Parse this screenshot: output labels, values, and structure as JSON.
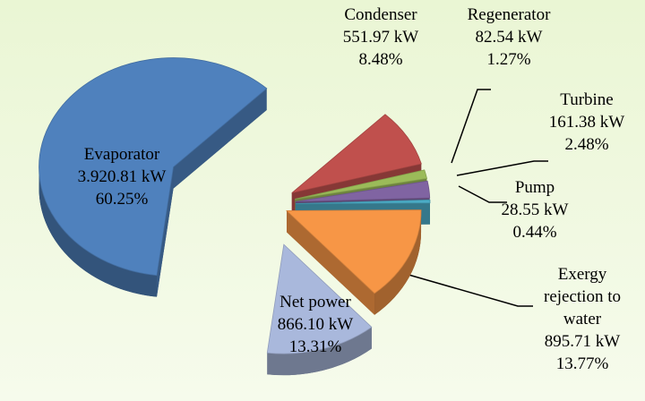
{
  "chart_data": {
    "type": "pie3d",
    "categories": [
      "Condenser",
      "Regenerator",
      "Turbine",
      "Pump",
      "Exergy rejection to water",
      "Net power",
      "Evaporator"
    ],
    "amount_labels": [
      "551.97 kW",
      "82.54 kW",
      "161.38 kW",
      "28.55 kW",
      "895.71 kW",
      "866.10 kW",
      "3.920.81 kW"
    ],
    "values": [
      8.48,
      1.27,
      2.48,
      0.44,
      13.77,
      13.31,
      60.25
    ],
    "value_labels": [
      "8.48%",
      "1.27%",
      "2.48%",
      "0.44%",
      "13.77%",
      "13.31%",
      "60.25%"
    ],
    "colors": [
      "#c0504d",
      "#9bbb59",
      "#8064a2",
      "#4bacc6",
      "#f79646",
      "#a9b8dc",
      "#4f81bd"
    ]
  }
}
